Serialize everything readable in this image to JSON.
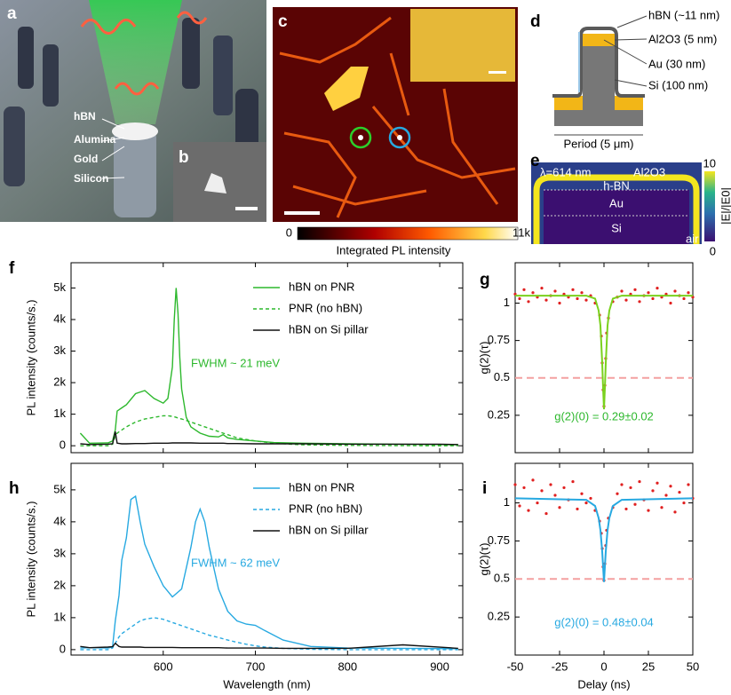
{
  "panels": {
    "a": {
      "label": "a",
      "texts": [
        "hBN",
        "Alumina",
        "Gold",
        "Silicon"
      ]
    },
    "b": {
      "label": "b"
    },
    "c": {
      "label": "c",
      "colorbar_min": 0,
      "colorbar_max": {
        "value": 11000,
        "label": "11k"
      },
      "colorbar_label": "Integrated PL intensity"
    },
    "d": {
      "label": "d",
      "layers": [
        "hBN (~11 nm)",
        "Al2O3 (5 nm)",
        "Au (30 nm)",
        "Si  (100 nm)"
      ],
      "period": "Period (5 μm)"
    },
    "e": {
      "label": "e",
      "wavelength": "λ=614 nm",
      "materials": [
        "Al2O3",
        "h-BN",
        "Au",
        "Si",
        "air"
      ],
      "colorbar_min": 0,
      "colorbar_max": 10,
      "colorbar_label": "|E|/|E0|"
    }
  },
  "chart_data": [
    {
      "type": "line",
      "panel_label": "f",
      "ylabel": "PL intensity (counts/s.)",
      "annotation": "FWHM ~ 21 meV",
      "annotation_color": "#2db82d",
      "x": [
        510,
        520,
        540,
        545,
        548,
        550,
        555,
        560,
        570,
        580,
        590,
        600,
        605,
        610,
        612,
        614,
        616,
        618,
        620,
        625,
        630,
        640,
        650,
        660,
        665,
        670,
        680,
        700,
        720,
        750,
        800,
        850,
        900,
        920
      ],
      "series": [
        {
          "name": "hBN on PNR",
          "color": "#2db82d",
          "dashed": false,
          "values": [
            400,
            80,
            90,
            150,
            500,
            1100,
            1200,
            1300,
            1650,
            1750,
            1500,
            1350,
            1500,
            2500,
            4000,
            5000,
            4200,
            2800,
            1800,
            900,
            600,
            400,
            300,
            280,
            350,
            250,
            200,
            150,
            100,
            80,
            60,
            50,
            40,
            30
          ]
        },
        {
          "name": "PNR (no hBN)",
          "color": "#2db82d",
          "dashed": true,
          "values": [
            0,
            0,
            0,
            50,
            300,
            400,
            500,
            600,
            750,
            850,
            900,
            950,
            950,
            930,
            920,
            900,
            880,
            860,
            850,
            800,
            750,
            650,
            550,
            450,
            400,
            350,
            250,
            150,
            80,
            30,
            10,
            5,
            0,
            0
          ]
        },
        {
          "name": "hBN on Si pillar",
          "color": "#111111",
          "dashed": false,
          "values": [
            60,
            40,
            50,
            60,
            450,
            80,
            60,
            60,
            70,
            70,
            80,
            80,
            80,
            90,
            90,
            90,
            90,
            90,
            90,
            90,
            90,
            80,
            80,
            80,
            80,
            70,
            70,
            60,
            60,
            60,
            50,
            50,
            50,
            40
          ]
        }
      ],
      "xlim": [
        500,
        925
      ],
      "xticks": [
        600,
        700,
        800,
        900
      ],
      "xtick_labels": false,
      "ylim": [
        -220,
        5800
      ],
      "yticks": [
        0,
        {
          "value": 1000,
          "label": "1k"
        },
        {
          "value": 2000,
          "label": "2k"
        },
        {
          "value": 3000,
          "label": "3k"
        },
        {
          "value": 4000,
          "label": "4k"
        },
        {
          "value": 5000,
          "label": "5k"
        }
      ],
      "legend": "upper right"
    },
    {
      "type": "scatter",
      "panel_label": "g",
      "ylabel": "g(2)(τ)",
      "annotation": "g(2)(0) = 0.29±0.02",
      "annotation_color": "#2db82d",
      "hline": {
        "value": 0.5,
        "color": "#f4a0a0"
      },
      "series": [
        {
          "mode": "markers",
          "color": "#e02020",
          "x": [
            -50,
            -47.5,
            -45,
            -42.5,
            -40,
            -37.5,
            -35,
            -32.5,
            -30,
            -27.5,
            -25,
            -22.5,
            -20,
            -17.5,
            -15,
            -12.5,
            -10,
            -7.5,
            -5,
            -2.5,
            -1.5,
            -1,
            -0.5,
            0,
            0.5,
            1,
            1.5,
            2.5,
            5,
            7.5,
            10,
            12.5,
            15,
            17.5,
            20,
            22.5,
            25,
            27.5,
            30,
            32.5,
            35,
            37.5,
            40,
            42.5,
            45,
            47.5,
            50
          ],
          "values": [
            1.06,
            1.03,
            1.09,
            1.01,
            1.07,
            1.04,
            1.1,
            1.02,
            1.05,
            1.08,
            1.0,
            1.06,
            1.04,
            1.09,
            1.03,
            1.07,
            1.02,
            1.05,
            1.0,
            0.92,
            0.78,
            0.6,
            0.42,
            0.31,
            0.45,
            0.63,
            0.8,
            0.9,
            1.01,
            1.04,
            1.08,
            1.02,
            1.06,
            1.09,
            1.01,
            1.05,
            1.07,
            1.03,
            1.1,
            1.04,
            1.06,
            1.0,
            1.08,
            1.05,
            1.03,
            1.07,
            1.04
          ]
        },
        {
          "mode": "line",
          "color": "#7ad11e",
          "x": [
            -50,
            -10,
            -5,
            -3,
            -2,
            -1,
            -0.5,
            0,
            0.5,
            1,
            2,
            3,
            5,
            10,
            50
          ],
          "values": [
            1.05,
            1.05,
            1.03,
            0.95,
            0.85,
            0.6,
            0.43,
            0.29,
            0.43,
            0.6,
            0.85,
            0.95,
            1.03,
            1.05,
            1.05
          ]
        }
      ],
      "xlim": [
        -50,
        50
      ],
      "xticks": [
        -50,
        -25,
        0,
        25,
        50
      ],
      "xtick_labels": false,
      "ylim": [
        0,
        1.27
      ],
      "yticks": [
        0.25,
        0.5,
        0.75,
        1
      ]
    },
    {
      "type": "line",
      "panel_label": "h",
      "xlabel": "Wavelength (nm)",
      "ylabel": "PL intensity (counts/s.)",
      "annotation": "FWHM ~ 62 meV",
      "annotation_color": "#27a9e1",
      "x": [
        510,
        520,
        540,
        545,
        548,
        552,
        555,
        560,
        565,
        570,
        575,
        580,
        590,
        600,
        610,
        620,
        630,
        635,
        640,
        645,
        650,
        660,
        670,
        680,
        690,
        700,
        710,
        730,
        760,
        800,
        860,
        920
      ],
      "series": [
        {
          "name": "hBN on PNR",
          "color": "#27a9e1",
          "dashed": false,
          "values": [
            50,
            60,
            50,
            80,
            900,
            1700,
            2800,
            3500,
            4700,
            4800,
            4000,
            3300,
            2600,
            2000,
            1650,
            1900,
            3200,
            4000,
            4400,
            4000,
            3200,
            1900,
            1200,
            900,
            800,
            760,
            600,
            300,
            100,
            50,
            40,
            30
          ]
        },
        {
          "name": "PNR (no hBN)",
          "color": "#27a9e1",
          "dashed": true,
          "values": [
            0,
            0,
            0,
            50,
            200,
            400,
            500,
            600,
            700,
            800,
            900,
            950,
            1000,
            950,
            850,
            750,
            650,
            600,
            550,
            500,
            450,
            380,
            300,
            230,
            170,
            120,
            80,
            40,
            10,
            0,
            0,
            0
          ]
        },
        {
          "name": "hBN on Si pillar",
          "color": "#111111",
          "dashed": false,
          "values": [
            100,
            60,
            80,
            90,
            200,
            100,
            80,
            80,
            80,
            80,
            80,
            70,
            70,
            70,
            70,
            60,
            60,
            60,
            60,
            60,
            60,
            60,
            50,
            50,
            50,
            50,
            50,
            40,
            40,
            40,
            150,
            40
          ]
        }
      ],
      "xlim": [
        500,
        925
      ],
      "xticks": [
        600,
        700,
        800,
        900
      ],
      "ylim": [
        -170,
        5830
      ],
      "yticks": [
        0,
        {
          "value": 1000,
          "label": "1k"
        },
        {
          "value": 2000,
          "label": "2k"
        },
        {
          "value": 3000,
          "label": "3k"
        },
        {
          "value": 4000,
          "label": "4k"
        },
        {
          "value": 5000,
          "label": "5k"
        }
      ],
      "legend": "upper right"
    },
    {
      "type": "scatter",
      "panel_label": "i",
      "xlabel": "Delay (ns)",
      "ylabel": "g(2)(τ)",
      "annotation": "g(2)(0) = 0.48±0.04",
      "annotation_color": "#27a9e1",
      "hline": {
        "value": 0.5,
        "color": "#f4a0a0"
      },
      "series": [
        {
          "mode": "markers",
          "color": "#e02020",
          "x": [
            -50,
            -47.5,
            -45,
            -42.5,
            -40,
            -37.5,
            -35,
            -32.5,
            -30,
            -27.5,
            -25,
            -22.5,
            -20,
            -17.5,
            -15,
            -12.5,
            -10,
            -7.5,
            -5,
            -2.5,
            -1.5,
            -1,
            -0.5,
            0,
            0.5,
            1,
            1.5,
            2.5,
            5,
            7.5,
            10,
            12.5,
            15,
            17.5,
            20,
            22.5,
            25,
            27.5,
            30,
            32.5,
            35,
            37.5,
            40,
            42.5,
            45,
            47.5,
            50
          ],
          "values": [
            1.12,
            0.98,
            1.1,
            0.95,
            1.15,
            1.0,
            1.08,
            0.93,
            1.12,
            1.05,
            0.97,
            1.1,
            1.02,
            1.14,
            0.96,
            1.06,
            1.0,
            1.03,
            0.95,
            0.88,
            0.8,
            0.7,
            0.58,
            0.49,
            0.6,
            0.72,
            0.82,
            0.9,
            0.97,
            1.06,
            1.12,
            0.96,
            1.1,
            0.99,
            1.14,
            1.02,
            0.95,
            1.08,
            1.13,
            0.97,
            1.05,
            1.11,
            0.94,
            1.07,
            1.0,
            1.12,
            1.03
          ]
        },
        {
          "mode": "line",
          "color": "#27a9e1",
          "x": [
            -50,
            -10,
            -5,
            -3,
            -2,
            -1,
            -0.5,
            0,
            0.5,
            1,
            2,
            3,
            5,
            10,
            50
          ],
          "values": [
            1.03,
            1.02,
            0.98,
            0.9,
            0.82,
            0.68,
            0.58,
            0.48,
            0.58,
            0.68,
            0.82,
            0.9,
            0.98,
            1.02,
            1.03
          ]
        }
      ],
      "xlim": [
        -50,
        50
      ],
      "xticks": [
        -50,
        -25,
        0,
        25,
        50
      ],
      "ylim": [
        0,
        1.26
      ],
      "yticks": [
        0.25,
        0.5,
        0.75,
        1
      ]
    }
  ]
}
